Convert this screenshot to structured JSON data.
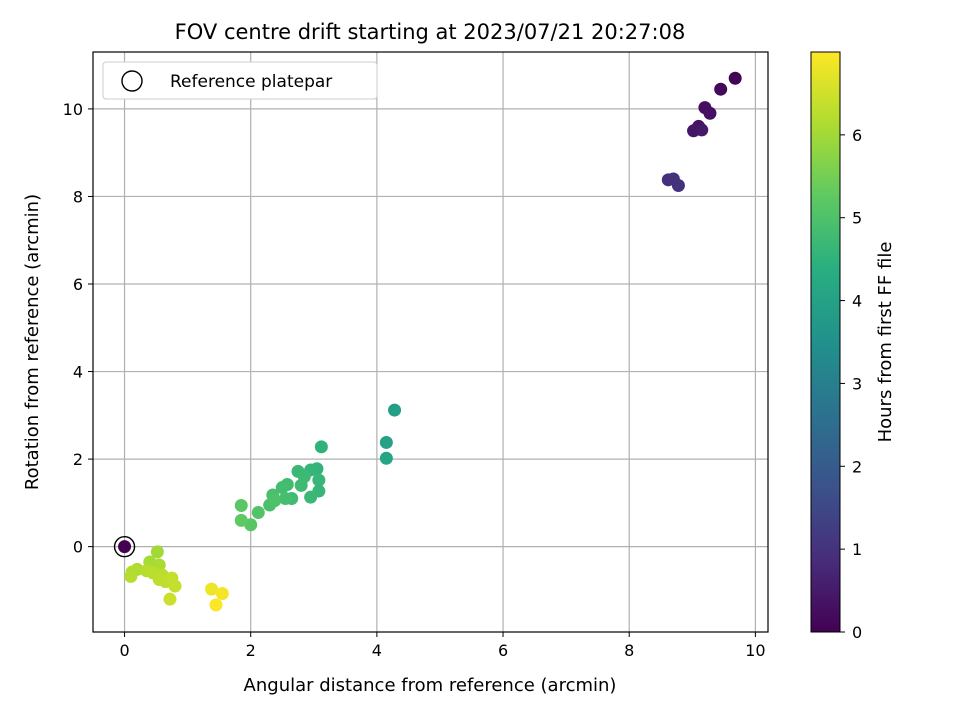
{
  "chart_data": {
    "type": "scatter",
    "title": "FOV centre drift starting at 2023/07/21 20:27:08",
    "xlabel": "Angular distance from reference (arcmin)",
    "ylabel": "Rotation from reference (arcmin)",
    "xlim": [
      -0.5,
      10.2
    ],
    "ylim": [
      -1.95,
      11.3
    ],
    "xticks": [
      "0",
      "2",
      "4",
      "6",
      "8",
      "10"
    ],
    "yticks": [
      "0",
      "2",
      "4",
      "6",
      "8",
      "10"
    ],
    "grid": true,
    "legend": {
      "position": "top-left",
      "entries": [
        "Reference platepar"
      ]
    },
    "reference_point": {
      "x": 0,
      "y": 0
    },
    "colorbar": {
      "label": "Hours from first FF file",
      "range": [
        0,
        7
      ],
      "ticks": [
        "0",
        "1",
        "2",
        "3",
        "4",
        "5",
        "6"
      ],
      "colormap": "viridis"
    },
    "series": [
      {
        "points": [
          {
            "x": 9.68,
            "y": 10.7,
            "c": 0.05
          },
          {
            "x": 9.45,
            "y": 10.45,
            "c": 0.15
          },
          {
            "x": 9.2,
            "y": 10.03,
            "c": 0.25
          },
          {
            "x": 9.28,
            "y": 9.9,
            "c": 0.3
          },
          {
            "x": 9.1,
            "y": 9.6,
            "c": 0.35
          },
          {
            "x": 9.02,
            "y": 9.5,
            "c": 0.4
          },
          {
            "x": 9.15,
            "y": 9.52,
            "c": 0.45
          },
          {
            "x": 8.62,
            "y": 8.38,
            "c": 0.9
          },
          {
            "x": 8.7,
            "y": 8.4,
            "c": 0.95
          },
          {
            "x": 8.78,
            "y": 8.25,
            "c": 1.0
          },
          {
            "x": 4.28,
            "y": 3.12,
            "c": 3.9
          },
          {
            "x": 4.15,
            "y": 2.38,
            "c": 4.0
          },
          {
            "x": 4.15,
            "y": 2.02,
            "c": 4.1
          },
          {
            "x": 3.12,
            "y": 2.28,
            "c": 4.5
          },
          {
            "x": 3.05,
            "y": 1.78,
            "c": 4.55
          },
          {
            "x": 2.95,
            "y": 1.75,
            "c": 4.6
          },
          {
            "x": 3.08,
            "y": 1.52,
            "c": 4.62
          },
          {
            "x": 3.08,
            "y": 1.27,
            "c": 4.65
          },
          {
            "x": 2.95,
            "y": 1.13,
            "c": 4.68
          },
          {
            "x": 2.75,
            "y": 1.72,
            "c": 4.7
          },
          {
            "x": 2.85,
            "y": 1.6,
            "c": 4.72
          },
          {
            "x": 2.8,
            "y": 1.4,
            "c": 4.75
          },
          {
            "x": 2.65,
            "y": 1.1,
            "c": 4.78
          },
          {
            "x": 2.58,
            "y": 1.42,
            "c": 4.8
          },
          {
            "x": 2.5,
            "y": 1.35,
            "c": 4.85
          },
          {
            "x": 2.55,
            "y": 1.1,
            "c": 4.88
          },
          {
            "x": 2.35,
            "y": 1.18,
            "c": 4.92
          },
          {
            "x": 2.3,
            "y": 0.95,
            "c": 4.95
          },
          {
            "x": 2.38,
            "y": 1.05,
            "c": 4.98
          },
          {
            "x": 2.12,
            "y": 0.78,
            "c": 5.05
          },
          {
            "x": 2.0,
            "y": 0.5,
            "c": 5.15
          },
          {
            "x": 1.85,
            "y": 0.94,
            "c": 5.2
          },
          {
            "x": 1.85,
            "y": 0.6,
            "c": 5.25
          },
          {
            "x": 0.52,
            "y": -0.12,
            "c": 6.0
          },
          {
            "x": 0.4,
            "y": -0.35,
            "c": 6.05
          },
          {
            "x": 0.55,
            "y": -0.42,
            "c": 6.1
          },
          {
            "x": 0.2,
            "y": -0.52,
            "c": 6.15
          },
          {
            "x": 0.12,
            "y": -0.58,
            "c": 6.18
          },
          {
            "x": 0.1,
            "y": -0.68,
            "c": 6.2
          },
          {
            "x": 0.35,
            "y": -0.55,
            "c": 6.22
          },
          {
            "x": 0.45,
            "y": -0.6,
            "c": 6.25
          },
          {
            "x": 0.6,
            "y": -0.65,
            "c": 6.28
          },
          {
            "x": 0.55,
            "y": -0.75,
            "c": 6.3
          },
          {
            "x": 0.65,
            "y": -0.8,
            "c": 6.32
          },
          {
            "x": 0.75,
            "y": -0.72,
            "c": 6.35
          },
          {
            "x": 0.8,
            "y": -0.9,
            "c": 6.38
          },
          {
            "x": 0.72,
            "y": -1.2,
            "c": 6.45
          },
          {
            "x": 1.38,
            "y": -0.97,
            "c": 6.85
          },
          {
            "x": 1.55,
            "y": -1.07,
            "c": 6.9
          },
          {
            "x": 1.45,
            "y": -1.33,
            "c": 6.98
          },
          {
            "x": 0.0,
            "y": 0.0,
            "c": 0.0
          }
        ]
      }
    ]
  }
}
